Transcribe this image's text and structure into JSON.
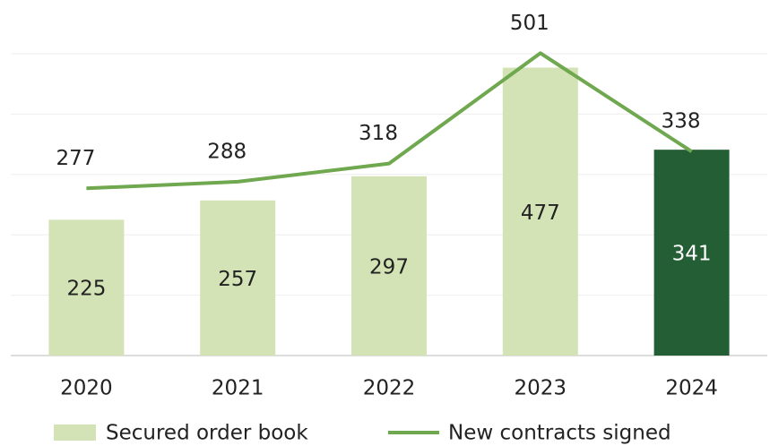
{
  "chart_data": {
    "type": "bar-line",
    "categories": [
      "2020",
      "2021",
      "2022",
      "2023",
      "2024"
    ],
    "series": [
      {
        "name": "Secured order book",
        "type": "bar",
        "color": "#d4e3b5",
        "colors": [
          "#d4e3b5",
          "#d4e3b5",
          "#d4e3b5",
          "#d4e3b5",
          "#235e35"
        ],
        "label_colors": [
          "#222",
          "#222",
          "#222",
          "#222",
          "#ffffff"
        ],
        "values": [
          225,
          257,
          297,
          477,
          341
        ]
      },
      {
        "name": "New contracts signed",
        "type": "line",
        "color": "#6fa84f",
        "values": [
          277,
          288,
          318,
          501,
          338
        ]
      }
    ],
    "ylim": [
      0,
      500
    ],
    "yticks": [
      0,
      100,
      200,
      300,
      400,
      500
    ],
    "grid": true
  }
}
